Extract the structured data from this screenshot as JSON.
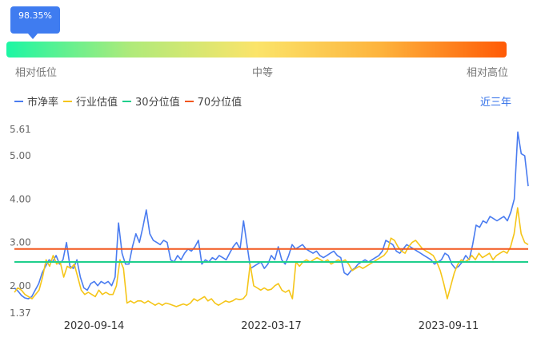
{
  "gauge": {
    "current_label": "98.35%",
    "percentile": 98.35,
    "low_label": "相对低位",
    "mid_label": "中等",
    "high_label": "相对高位",
    "colors": [
      "#1cf6a4",
      "#b0ea7a",
      "#fbe46a",
      "#fdb33c",
      "#ff5a06"
    ]
  },
  "legend": [
    {
      "name": "市净率",
      "color": "#4a7cf0"
    },
    {
      "name": "行业估值",
      "color": "#f5c518"
    },
    {
      "name": "30分位值",
      "color": "#1fcf8c"
    },
    {
      "name": "70分位值",
      "color": "#f2561d"
    }
  ],
  "range_label": "近三年",
  "chart_data": {
    "type": "line",
    "y_ticks": [
      "5.61",
      "5.00",
      "4.00",
      "3.00",
      "2.00",
      "1.37"
    ],
    "y_tick_values": [
      5.61,
      5.0,
      4.0,
      3.0,
      2.0,
      1.37
    ],
    "ylim": [
      1.37,
      5.61
    ],
    "x_ticks": [
      "2020-09-14",
      "2022-03-17",
      "2023-09-11"
    ],
    "x_tick_positions": [
      0.155,
      0.5,
      0.845
    ],
    "series": [
      {
        "name": "市净率",
        "color": "#4a7cf0",
        "values": [
          1.95,
          1.88,
          1.78,
          1.72,
          1.7,
          1.75,
          1.9,
          2.05,
          2.3,
          2.45,
          2.6,
          2.55,
          2.7,
          2.5,
          2.6,
          3.0,
          2.45,
          2.4,
          2.6,
          2.2,
          1.95,
          1.9,
          2.05,
          2.1,
          2.0,
          2.1,
          2.05,
          2.1,
          2.0,
          2.2,
          3.45,
          2.75,
          2.5,
          2.5,
          2.9,
          3.2,
          3.0,
          3.35,
          3.75,
          3.2,
          3.05,
          3.0,
          2.95,
          3.05,
          3.0,
          2.6,
          2.55,
          2.7,
          2.6,
          2.75,
          2.85,
          2.8,
          2.9,
          3.05,
          2.5,
          2.6,
          2.55,
          2.65,
          2.6,
          2.7,
          2.65,
          2.6,
          2.75,
          2.9,
          3.0,
          2.85,
          3.5,
          2.95,
          2.4,
          2.45,
          2.5,
          2.55,
          2.4,
          2.5,
          2.7,
          2.6,
          2.9,
          2.6,
          2.5,
          2.7,
          2.95,
          2.85,
          2.9,
          2.95,
          2.85,
          2.8,
          2.75,
          2.8,
          2.7,
          2.65,
          2.7,
          2.75,
          2.8,
          2.7,
          2.65,
          2.3,
          2.25,
          2.35,
          2.4,
          2.5,
          2.55,
          2.6,
          2.55,
          2.6,
          2.65,
          2.7,
          2.8,
          3.05,
          3.0,
          2.95,
          2.8,
          2.75,
          2.85,
          2.95,
          2.9,
          2.85,
          2.8,
          2.75,
          2.7,
          2.65,
          2.6,
          2.5,
          2.55,
          2.6,
          2.75,
          2.7,
          2.5,
          2.4,
          2.45,
          2.55,
          2.7,
          2.6,
          2.95,
          3.4,
          3.35,
          3.5,
          3.45,
          3.6,
          3.55,
          3.5,
          3.55,
          3.6,
          3.5,
          3.7,
          4.0,
          5.55,
          5.05,
          5.0,
          4.3
        ]
      },
      {
        "name": "行业估值",
        "color": "#f5c518",
        "values": [
          1.85,
          1.95,
          1.9,
          1.8,
          1.75,
          1.7,
          1.8,
          1.9,
          2.2,
          2.6,
          2.45,
          2.7,
          2.5,
          2.55,
          2.2,
          2.45,
          2.4,
          2.5,
          2.2,
          1.9,
          1.8,
          1.85,
          1.8,
          1.75,
          1.9,
          1.8,
          1.85,
          1.8,
          1.8,
          2.0,
          2.6,
          2.4,
          1.6,
          1.65,
          1.6,
          1.65,
          1.65,
          1.6,
          1.65,
          1.6,
          1.55,
          1.6,
          1.55,
          1.6,
          1.58,
          1.55,
          1.52,
          1.55,
          1.58,
          1.55,
          1.6,
          1.7,
          1.65,
          1.7,
          1.75,
          1.65,
          1.7,
          1.6,
          1.55,
          1.6,
          1.65,
          1.62,
          1.65,
          1.7,
          1.68,
          1.7,
          1.8,
          2.5,
          2.0,
          1.95,
          1.9,
          1.95,
          1.9,
          1.92,
          2.0,
          2.05,
          1.9,
          1.85,
          1.9,
          1.7,
          2.55,
          2.45,
          2.55,
          2.6,
          2.55,
          2.6,
          2.65,
          2.6,
          2.55,
          2.6,
          2.5,
          2.55,
          2.6,
          2.55,
          2.6,
          2.5,
          2.35,
          2.4,
          2.45,
          2.4,
          2.45,
          2.5,
          2.55,
          2.6,
          2.65,
          2.7,
          2.8,
          3.1,
          3.05,
          2.9,
          2.8,
          2.75,
          2.9,
          3.0,
          3.05,
          2.95,
          2.85,
          2.8,
          2.75,
          2.7,
          2.55,
          2.35,
          2.05,
          1.7,
          2.0,
          2.3,
          2.5,
          2.6,
          2.55,
          2.6,
          2.7,
          2.6,
          2.75,
          2.65,
          2.7,
          2.75,
          2.6,
          2.7,
          2.75,
          2.8,
          2.75,
          2.9,
          3.2,
          3.8,
          3.2,
          3.0,
          2.95
        ]
      },
      {
        "name": "30分位值",
        "color": "#1fcf8c",
        "values": [
          2.55
        ]
      },
      {
        "name": "70分位值",
        "color": "#f2561d",
        "values": [
          2.85
        ]
      }
    ]
  }
}
